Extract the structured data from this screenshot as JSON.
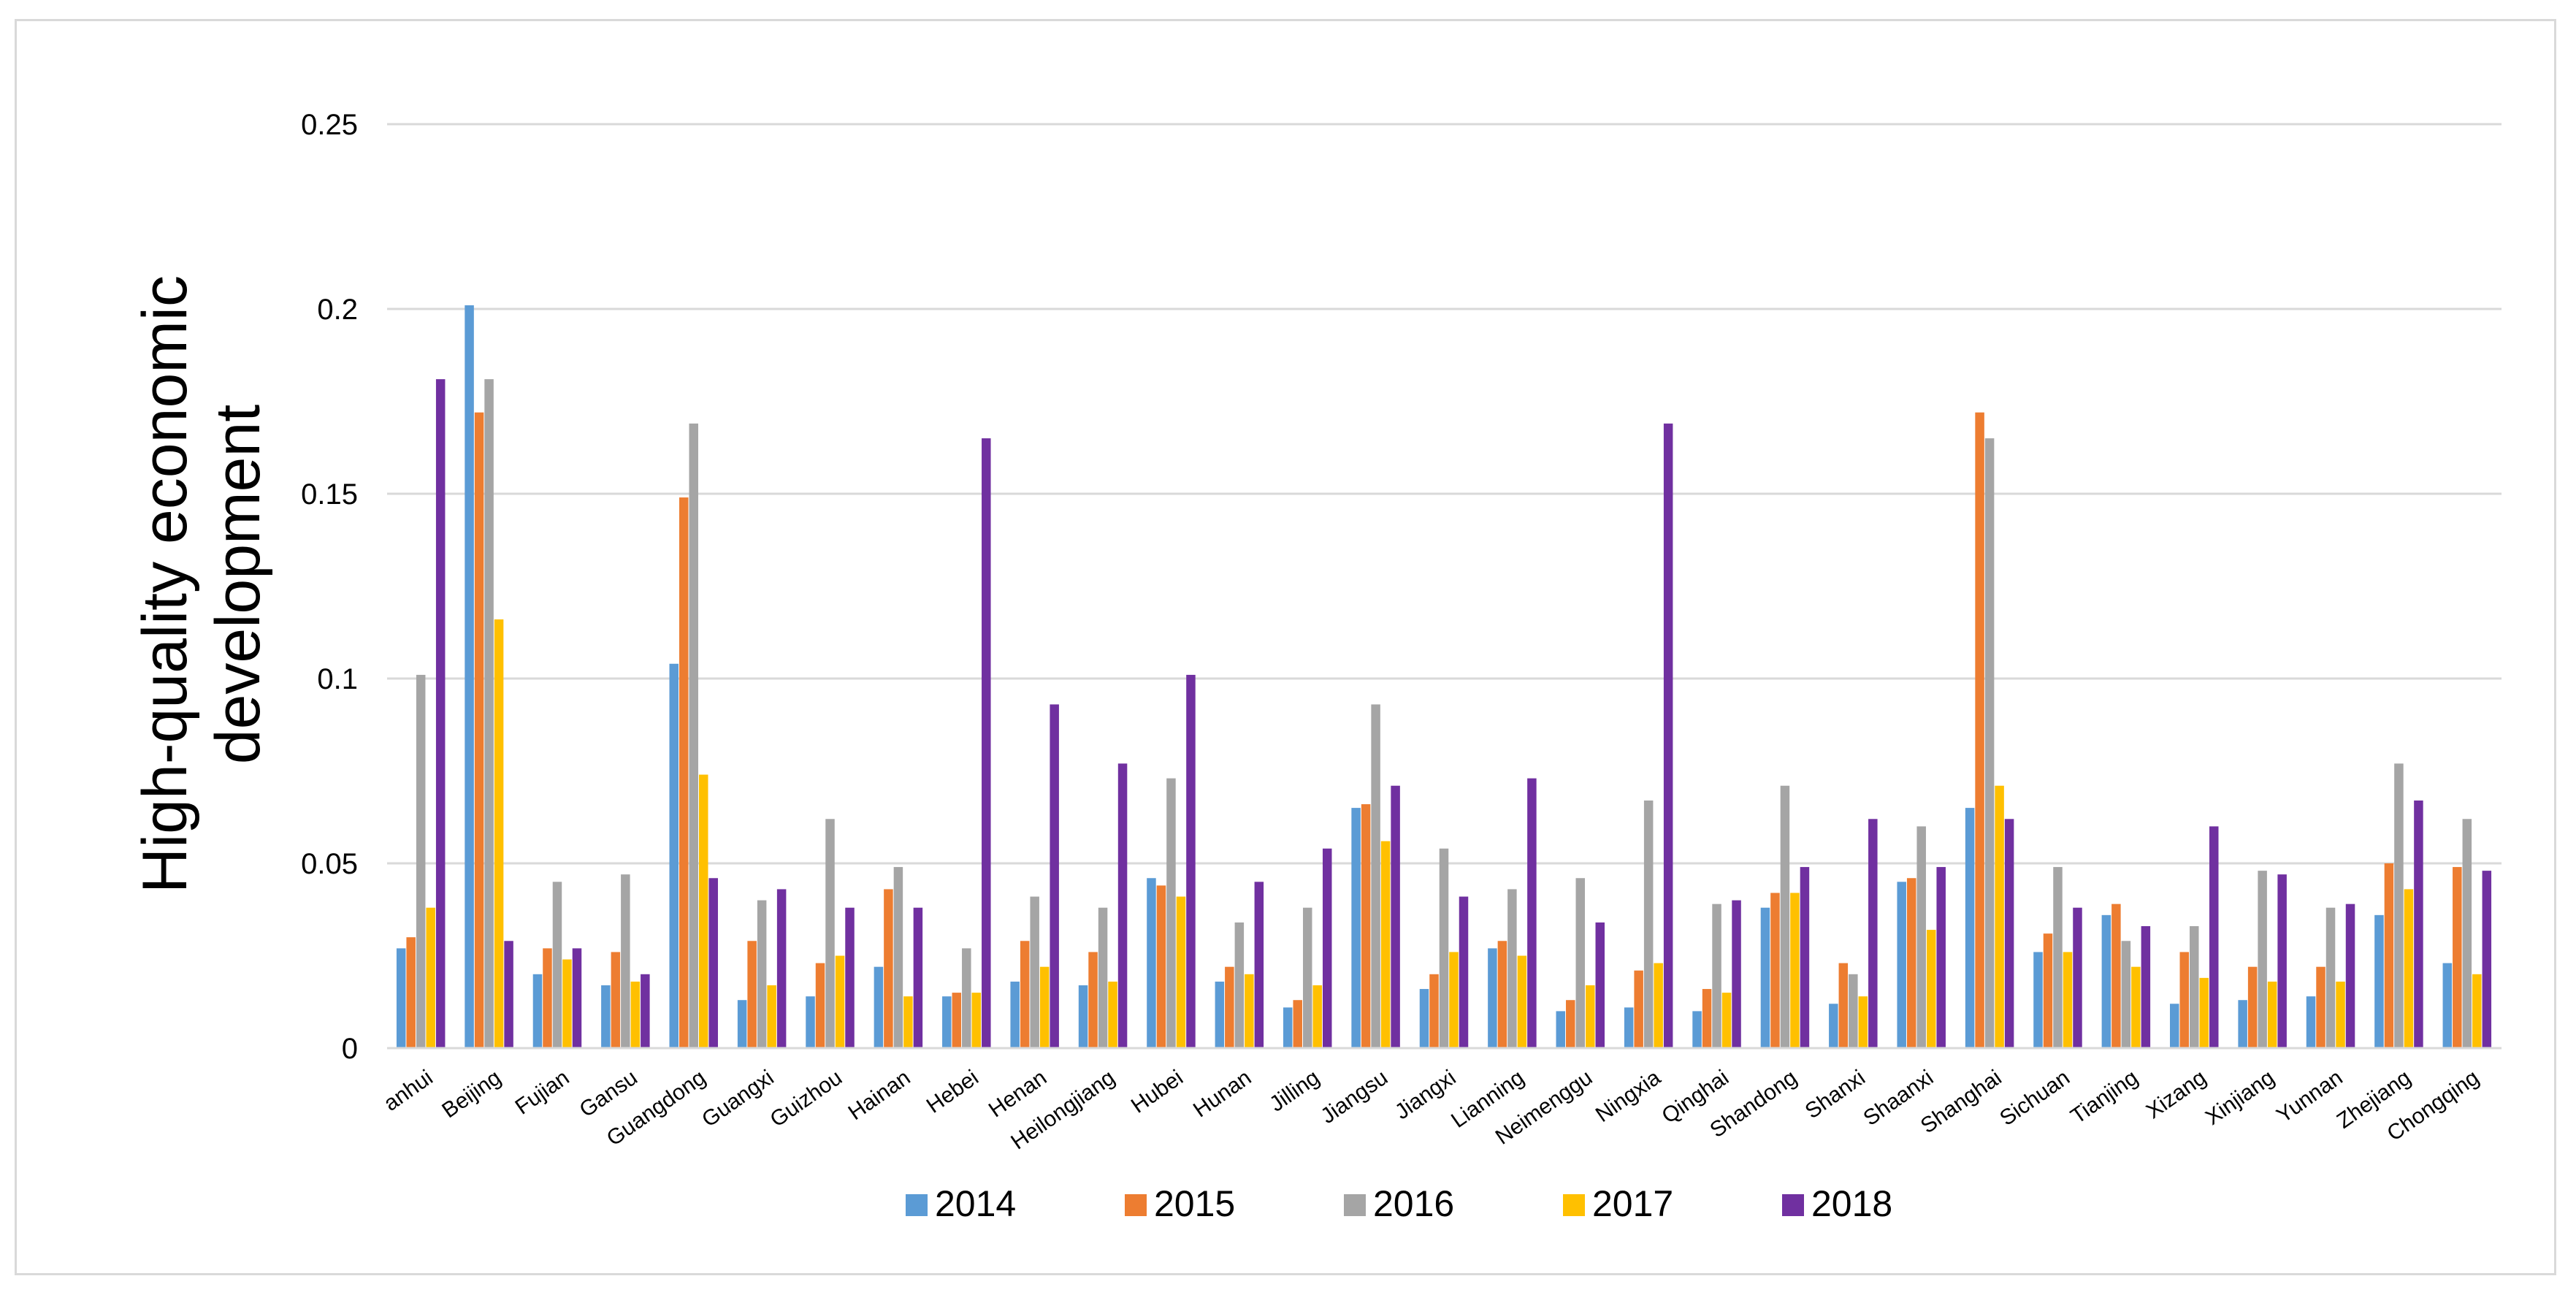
{
  "chart_data": {
    "type": "bar",
    "title": "",
    "xlabel": "",
    "ylabel": "High-quality economic development",
    "ylabel_lines": [
      "High-quality economic",
      "development"
    ],
    "ylim": [
      0,
      0.25
    ],
    "yticks": [
      0,
      0.05,
      0.1,
      0.15,
      0.2,
      0.25
    ],
    "ytick_labels": [
      "0",
      "0.05",
      "0.1",
      "0.15",
      "0.2",
      "0.25"
    ],
    "grid": true,
    "legend_position": "bottom",
    "categories": [
      "anhui",
      "Beijing",
      "Fujian",
      "Gansu",
      "Guangdong",
      "Guangxi",
      "Guizhou",
      "Hainan",
      "Hebei",
      "Henan",
      "Heilongjiang",
      "Hubei",
      "Hunan",
      "Jilling",
      "Jiangsu",
      "Jiangxi",
      "Lianning",
      "Neimenggu",
      "Ningxia",
      "Qinghai",
      "Shandong",
      "Shanxi",
      "Shaanxi",
      "Shanghai",
      "Sichuan",
      "Tianjing",
      "Xizang",
      "Xinjiang",
      "Yunnan",
      "Zhejiang",
      "Chongqing"
    ],
    "series": [
      {
        "name": "2014",
        "color": "#5b9bd5",
        "values": [
          0.027,
          0.201,
          0.02,
          0.017,
          0.104,
          0.013,
          0.014,
          0.022,
          0.014,
          0.018,
          0.017,
          0.046,
          0.018,
          0.011,
          0.065,
          0.016,
          0.027,
          0.01,
          0.011,
          0.01,
          0.038,
          0.012,
          0.045,
          0.065,
          0.026,
          0.036,
          0.012,
          0.013,
          0.014,
          0.036,
          0.023
        ]
      },
      {
        "name": "2015",
        "color": "#ed7d31",
        "values": [
          0.03,
          0.172,
          0.027,
          0.026,
          0.149,
          0.029,
          0.023,
          0.043,
          0.015,
          0.029,
          0.026,
          0.044,
          0.022,
          0.013,
          0.066,
          0.02,
          0.029,
          0.013,
          0.021,
          0.016,
          0.042,
          0.023,
          0.046,
          0.172,
          0.031,
          0.039,
          0.026,
          0.022,
          0.022,
          0.05,
          0.049
        ]
      },
      {
        "name": "2016",
        "color": "#a5a5a5",
        "values": [
          0.101,
          0.181,
          0.045,
          0.047,
          0.169,
          0.04,
          0.062,
          0.049,
          0.027,
          0.041,
          0.038,
          0.073,
          0.034,
          0.038,
          0.093,
          0.054,
          0.043,
          0.046,
          0.067,
          0.039,
          0.071,
          0.02,
          0.06,
          0.165,
          0.049,
          0.029,
          0.033,
          0.048,
          0.038,
          0.077,
          0.062
        ]
      },
      {
        "name": "2017",
        "color": "#ffc000",
        "values": [
          0.038,
          0.116,
          0.024,
          0.018,
          0.074,
          0.017,
          0.025,
          0.014,
          0.015,
          0.022,
          0.018,
          0.041,
          0.02,
          0.017,
          0.056,
          0.026,
          0.025,
          0.017,
          0.023,
          0.015,
          0.042,
          0.014,
          0.032,
          0.071,
          0.026,
          0.022,
          0.019,
          0.018,
          0.018,
          0.043,
          0.02
        ]
      },
      {
        "name": "2018",
        "color": "#7030a0",
        "values": [
          0.181,
          0.029,
          0.027,
          0.02,
          0.046,
          0.043,
          0.038,
          0.038,
          0.165,
          0.093,
          0.077,
          0.101,
          0.045,
          0.054,
          0.071,
          0.041,
          0.073,
          0.034,
          0.169,
          0.04,
          0.049,
          0.062,
          0.049,
          0.062,
          0.038,
          0.033,
          0.06,
          0.047,
          0.039,
          0.067,
          0.048
        ]
      }
    ]
  }
}
